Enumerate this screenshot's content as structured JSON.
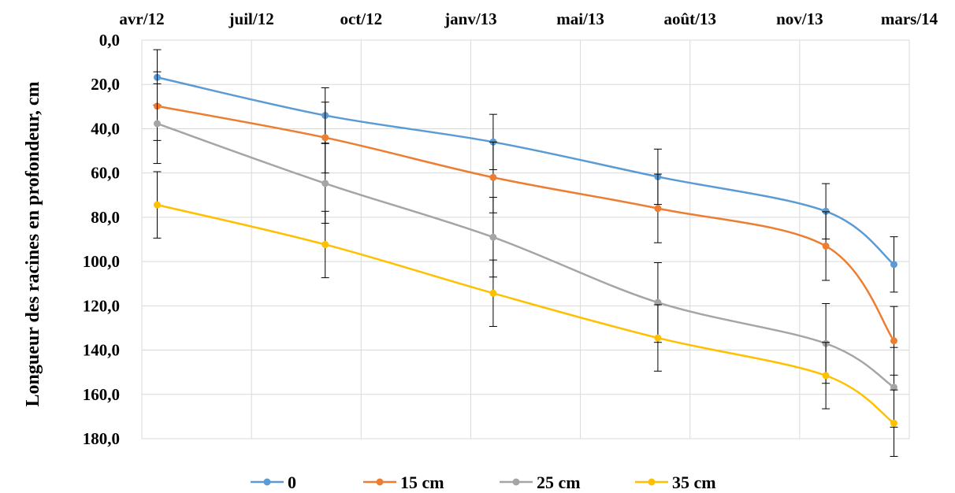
{
  "chart_data": {
    "type": "line",
    "title": "",
    "xlabel": "",
    "ylabel": "Longueur des racines en profondeur, cm",
    "x_axis_position": "top",
    "y_axis_inverted": true,
    "x_tick_labels": [
      "avr/12",
      "juil/12",
      "oct/12",
      "janv/13",
      "mai/13",
      "août/13",
      "nov/13",
      "mars/14"
    ],
    "x_range": [
      "2012-04-01",
      "2014-03-01"
    ],
    "y_tick_labels": [
      "0,0",
      "20,0",
      "40,0",
      "60,0",
      "80,0",
      "100,0",
      "120,0",
      "140,0",
      "160,0",
      "180,0"
    ],
    "ylim": [
      0,
      180
    ],
    "grid": true,
    "legend_position": "bottom",
    "x": [
      "2012-04-15",
      "2012-09-15",
      "2013-02-15",
      "2013-07-15",
      "2013-12-15",
      "2014-02-15"
    ],
    "series": [
      {
        "name": "0",
        "color": "#5B9BD5",
        "values": [
          16.8,
          34.0,
          46.0,
          61.7,
          77.3,
          101.3
        ],
        "error": [
          12.5,
          12.5,
          12.5,
          12.5,
          12.5,
          12.5
        ]
      },
      {
        "name": "15 cm",
        "color": "#ED7D31",
        "values": [
          29.8,
          44.0,
          62.0,
          76.0,
          93.0,
          135.8
        ],
        "error": [
          15.5,
          16.0,
          16.0,
          15.5,
          15.5,
          15.5
        ]
      },
      {
        "name": "25 cm",
        "color": "#A5A5A5",
        "values": [
          37.7,
          64.7,
          89.0,
          118.5,
          137.0,
          156.8
        ],
        "error": [
          18.0,
          18.0,
          18.0,
          18.0,
          18.0,
          18.0
        ]
      },
      {
        "name": "35 cm",
        "color": "#FFC000",
        "values": [
          74.4,
          92.3,
          114.3,
          134.5,
          151.5,
          173.0
        ],
        "error": [
          15.0,
          15.0,
          15.0,
          15.0,
          15.0,
          15.0
        ]
      }
    ]
  }
}
